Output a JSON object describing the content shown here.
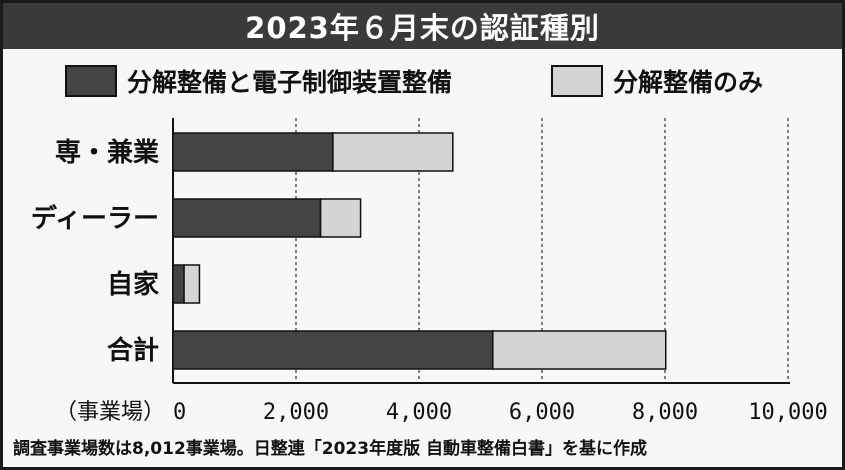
{
  "chart_data": {
    "type": "bar",
    "orientation": "horizontal",
    "stacked": true,
    "title": "2023年６月末の認証種別",
    "categories": [
      "専・兼業",
      "ディーラー",
      "自家",
      "合計"
    ],
    "series": [
      {
        "name": "分解整備と電子制御装置整備",
        "values": [
          2600,
          2400,
          180,
          5200
        ],
        "color": "#444444"
      },
      {
        "name": "分解整備のみ",
        "values": [
          1950,
          650,
          250,
          2812
        ],
        "color": "#d4d4d4"
      }
    ],
    "xlim": [
      0,
      10000
    ],
    "xticks": [
      0,
      2000,
      4000,
      6000,
      8000,
      10000
    ],
    "xtick_labels": [
      "0",
      "2,000",
      "4,000",
      "6,000",
      "8,000",
      "10,000"
    ],
    "xunit": "（事業場）",
    "grid": "vertical-dashed",
    "legend_position": "top",
    "footnote": "調査事業場数は8,012事業場。日整連「2023年度版 自動車整備白書」を基に作成"
  }
}
